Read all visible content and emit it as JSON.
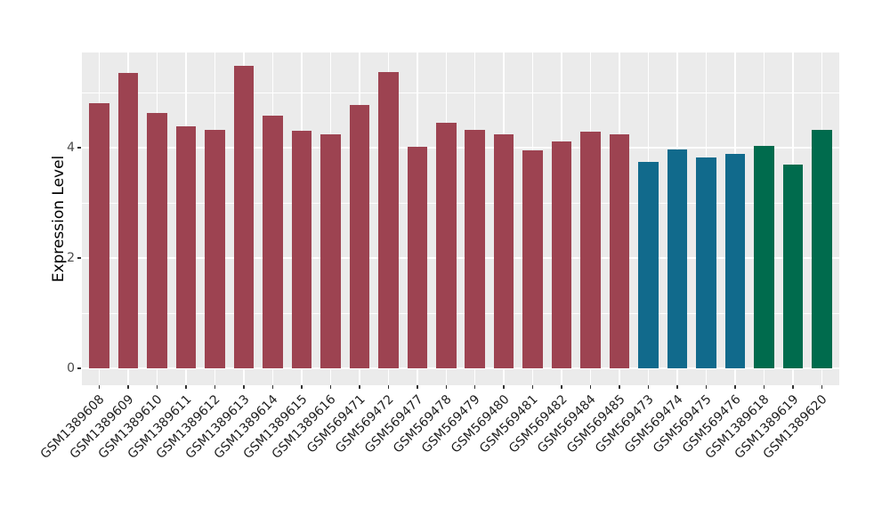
{
  "chart_data": {
    "type": "bar",
    "title": "",
    "xlabel": "",
    "ylabel": "Expression Level",
    "ylim": [
      -0.29,
      5.74
    ],
    "yticks": [
      0,
      2,
      4
    ],
    "yticks_minor": [
      1,
      3,
      5
    ],
    "grid": "on",
    "legend": "none",
    "categories": [
      "GSM1389608",
      "GSM1389609",
      "GSM1389610",
      "GSM1389611",
      "GSM1389612",
      "GSM1389613",
      "GSM1389614",
      "GSM1389615",
      "GSM1389616",
      "GSM569471",
      "GSM569472",
      "GSM569477",
      "GSM569478",
      "GSM569479",
      "GSM569480",
      "GSM569481",
      "GSM569482",
      "GSM569484",
      "GSM569485",
      "GSM569473",
      "GSM569474",
      "GSM569475",
      "GSM569476",
      "GSM1389618",
      "GSM1389619",
      "GSM1389620"
    ],
    "values": [
      4.81,
      5.35,
      4.63,
      4.39,
      4.32,
      5.49,
      4.58,
      4.31,
      4.24,
      4.77,
      5.37,
      4.02,
      4.45,
      4.33,
      4.25,
      3.95,
      4.11,
      4.29,
      4.24,
      3.75,
      3.96,
      3.83,
      3.88,
      4.04,
      3.69,
      4.32
    ],
    "group_index": [
      0,
      0,
      0,
      0,
      0,
      0,
      0,
      0,
      0,
      0,
      0,
      0,
      0,
      0,
      0,
      0,
      0,
      0,
      0,
      1,
      1,
      1,
      1,
      2,
      2,
      2
    ],
    "palette": [
      "#9D4351",
      "#116A8C",
      "#006B4D"
    ],
    "colors": {
      "panel_background": "#EBEBEB",
      "figure_background": "#FFFFFF",
      "gridline": "#FFFFFF",
      "tick_mark": "#333333",
      "tick_text": "#4A4A4A",
      "axis_title_text": "#000000"
    }
  }
}
